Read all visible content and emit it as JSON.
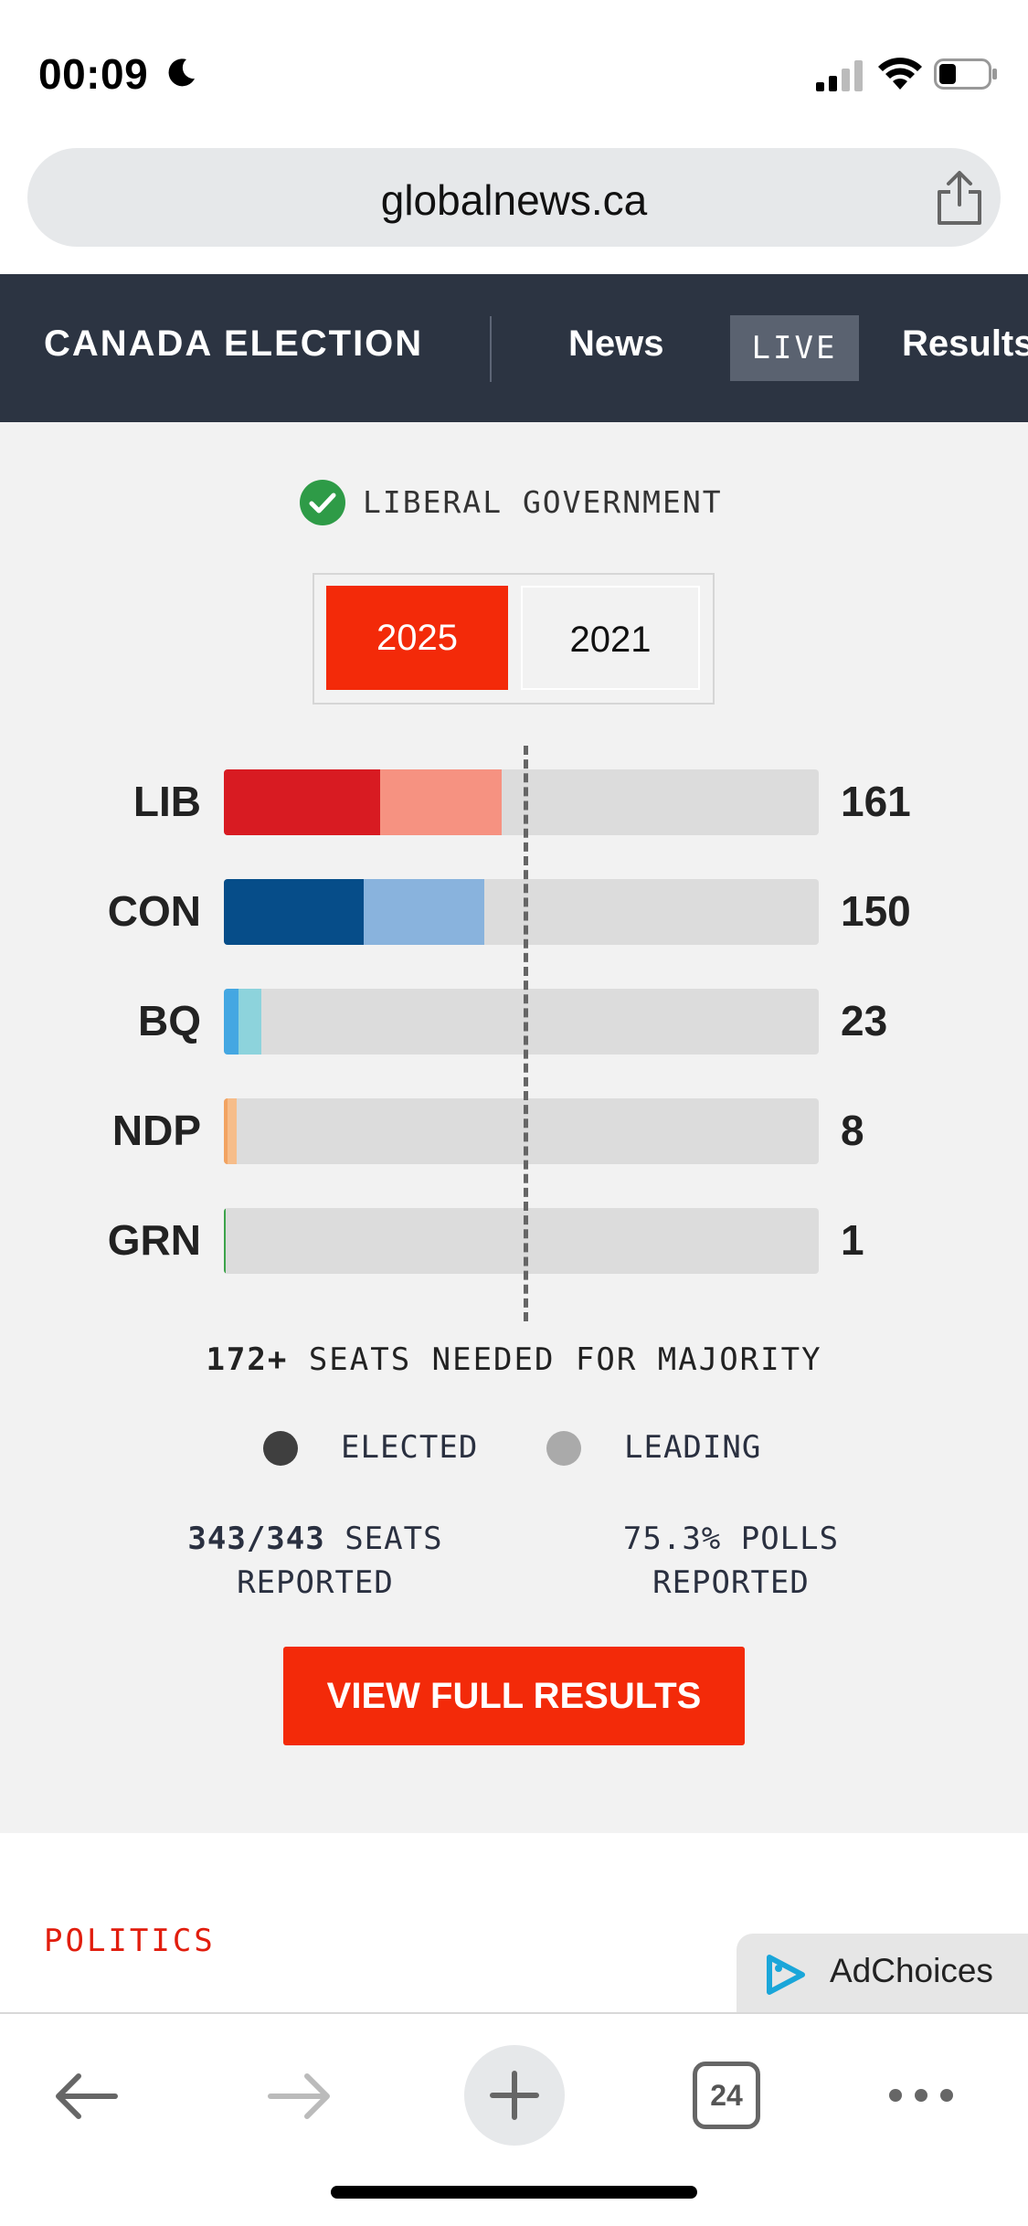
{
  "status_bar": {
    "time": "00:09"
  },
  "url_bar": {
    "domain": "globalnews.ca"
  },
  "nav": {
    "title": "CANADA ELECTION",
    "news": "News",
    "live": "LIVE",
    "results": "Results"
  },
  "results": {
    "government_label": "LIBERAL GOVERNMENT",
    "years": [
      "2025",
      "2021"
    ],
    "selected_year": "2025",
    "seats_scale_max": 343,
    "majority_threshold": 172,
    "parties": [
      {
        "abbr": "LIB",
        "seats": "161",
        "elected_fraction": 0.262,
        "leading_fraction": 0.205,
        "elected_color": "#d81b22",
        "leading_color": "#f69281"
      },
      {
        "abbr": "CON",
        "seats": "150",
        "elected_fraction": 0.235,
        "leading_fraction": 0.203,
        "elected_color": "#064d89",
        "leading_color": "#89b3dd"
      },
      {
        "abbr": "BQ",
        "seats": "23",
        "elected_fraction": 0.025,
        "leading_fraction": 0.039,
        "elected_color": "#44a7e2",
        "leading_color": "#8dd3dc"
      },
      {
        "abbr": "NDP",
        "seats": "8",
        "elected_fraction": 0.006,
        "leading_fraction": 0.016,
        "elected_color": "#f2a361",
        "leading_color": "#f6bd8a"
      },
      {
        "abbr": "GRN",
        "seats": "1",
        "elected_fraction": 0.003,
        "leading_fraction": 0.0,
        "elected_color": "#3ca34a",
        "leading_color": "#9dd4a2"
      }
    ],
    "majority_note": {
      "count": "172+",
      "text": "SEATS NEEDED FOR MAJORITY"
    },
    "legend": {
      "elected": "ELECTED",
      "leading": "LEADING",
      "elected_color": "#3f3f3f",
      "leading_color": "#aaaaaa"
    },
    "seats_reported": {
      "value": "343/343",
      "line1": "SEATS",
      "line2": "REPORTED"
    },
    "polls_reported": {
      "line1": "75.3% POLLS",
      "line2": "REPORTED"
    },
    "view_full_results": "VIEW FULL RESULTS"
  },
  "section": {
    "label": "POLITICS"
  },
  "ad": {
    "label": "AdChoices"
  },
  "toolbar": {
    "tab_count": "24"
  },
  "colors": {
    "accent": "#f32a09",
    "nav_bg": "#2c3442",
    "panel_bg": "#f2f2f2"
  }
}
